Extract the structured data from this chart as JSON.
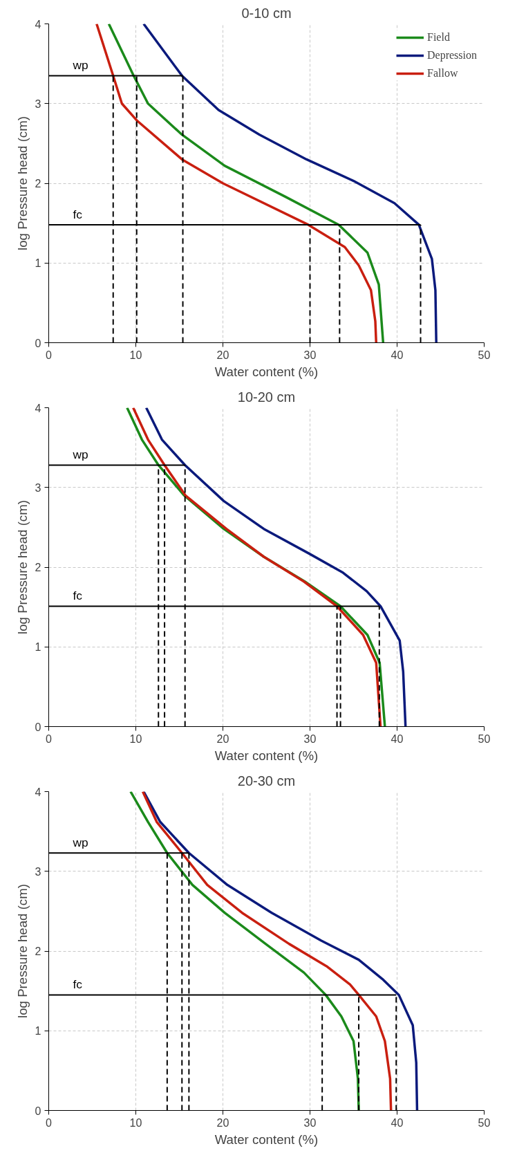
{
  "chart_data": [
    {
      "type": "line",
      "title": "0-10 cm",
      "xlabel": "Water content (%)",
      "ylabel": "log Pressure head (cm)",
      "xlim": [
        0,
        50
      ],
      "ylim": [
        0,
        4
      ],
      "xticks": [
        0,
        10,
        20,
        30,
        40,
        50
      ],
      "yticks": [
        0,
        1,
        2,
        3,
        4
      ],
      "grid": true,
      "legend": "top right",
      "annotations": [
        {
          "text": "wp",
          "y": 3.35
        },
        {
          "text": "fc",
          "y": 1.48
        }
      ],
      "series": [
        {
          "name": "Field",
          "color": "#1b8a1b",
          "x": [
            6.9,
            9.75,
            11.4,
            15.3,
            20.2,
            27.2,
            33.3,
            36.6,
            37.9,
            38.4
          ],
          "values": [
            4,
            3.35,
            3.0,
            2.61,
            2.22,
            1.83,
            1.48,
            1.13,
            0.73,
            0
          ]
        },
        {
          "name": "Depression",
          "color": "#0b1a7c",
          "x": [
            10.9,
            15.3,
            19.5,
            24.2,
            29.6,
            35.0,
            39.7,
            42.5,
            44.0,
            44.4,
            44.5
          ],
          "values": [
            4,
            3.35,
            2.92,
            2.61,
            2.3,
            2.03,
            1.75,
            1.48,
            1.05,
            0.66,
            0
          ]
        },
        {
          "name": "Fallow",
          "color": "#c91f10",
          "x": [
            5.5,
            7.4,
            8.4,
            10.1,
            15.3,
            20.0,
            29.8,
            34.0,
            35.6,
            37.0,
            37.5,
            37.6
          ],
          "values": [
            4,
            3.35,
            3.0,
            2.79,
            2.3,
            2.0,
            1.48,
            1.2,
            0.97,
            0.66,
            0.27,
            0
          ]
        },
        {
          "color": "#000000",
          "x": [
            0,
            15.4
          ],
          "values": [
            3.35,
            3.35
          ]
        },
        {
          "color": "#000000",
          "x": [
            0,
            42.7
          ],
          "values": [
            1.48,
            1.48
          ]
        },
        {
          "color": "#000000",
          "line_style": "dashed",
          "x": [
            7.4,
            7.4
          ],
          "values": [
            0,
            3.35
          ]
        },
        {
          "color": "#000000",
          "line_style": "dashed",
          "x": [
            10.1,
            10.1
          ],
          "values": [
            0,
            3.35
          ]
        },
        {
          "color": "#000000",
          "line_style": "dashed",
          "x": [
            15.4,
            15.4
          ],
          "values": [
            0,
            3.35
          ]
        },
        {
          "color": "#000000",
          "line_style": "dashed",
          "x": [
            30.0,
            30.0
          ],
          "values": [
            0,
            1.48
          ]
        },
        {
          "color": "#000000",
          "line_style": "dashed",
          "x": [
            33.4,
            33.4
          ],
          "values": [
            0,
            1.48
          ]
        },
        {
          "color": "#000000",
          "line_style": "dashed",
          "x": [
            42.7,
            42.7
          ],
          "values": [
            0,
            1.48
          ]
        }
      ]
    },
    {
      "type": "line",
      "title": "10-20 cm",
      "xlabel": "Water content (%)",
      "ylabel": "log Pressure head (cm)",
      "xlim": [
        0,
        50
      ],
      "ylim": [
        0,
        4
      ],
      "xticks": [
        0,
        10,
        20,
        30,
        40,
        50
      ],
      "yticks": [
        0,
        1,
        2,
        3,
        4
      ],
      "grid": true,
      "annotations": [
        {
          "text": "wp",
          "y": 3.28
        },
        {
          "text": "fc",
          "y": 1.51
        }
      ],
      "series": [
        {
          "color": "#1b8a1b",
          "x": [
            9.0,
            10.7,
            12.6,
            15.55,
            20.1,
            24.7,
            29.4,
            33.5,
            36.6,
            38.0,
            38.6
          ],
          "values": [
            4,
            3.6,
            3.28,
            2.9,
            2.48,
            2.13,
            1.82,
            1.51,
            1.15,
            0.8,
            0
          ]
        },
        {
          "color": "#0b1a7c",
          "x": [
            11.2,
            13.0,
            15.65,
            20.1,
            24.7,
            29.9,
            33.8,
            36.5,
            38.1,
            40.3,
            40.7,
            40.97
          ],
          "values": [
            4,
            3.6,
            3.28,
            2.83,
            2.48,
            2.17,
            1.93,
            1.7,
            1.51,
            1.08,
            0.69,
            0
          ]
        },
        {
          "color": "#c91f10",
          "x": [
            9.7,
            11.4,
            13.3,
            15.7,
            20.4,
            24.7,
            29.3,
            33.1,
            36.1,
            37.6,
            38.1
          ],
          "values": [
            4,
            3.6,
            3.28,
            2.9,
            2.48,
            2.13,
            1.82,
            1.51,
            1.15,
            0.8,
            0
          ]
        },
        {
          "color": "#000000",
          "x": [
            0,
            15.65
          ],
          "values": [
            3.28,
            3.28
          ]
        },
        {
          "color": "#000000",
          "x": [
            0,
            37.96
          ],
          "values": [
            1.51,
            1.51
          ]
        },
        {
          "color": "#000000",
          "line_style": "dashed",
          "x": [
            12.6,
            12.6
          ],
          "values": [
            0,
            3.28
          ]
        },
        {
          "color": "#000000",
          "line_style": "dashed",
          "x": [
            13.3,
            13.3
          ],
          "values": [
            0,
            3.28
          ]
        },
        {
          "color": "#000000",
          "line_style": "dashed",
          "x": [
            15.65,
            15.65
          ],
          "values": [
            0,
            3.28
          ]
        },
        {
          "color": "#000000",
          "line_style": "dashed",
          "x": [
            33.1,
            33.1
          ],
          "values": [
            0,
            1.51
          ]
        },
        {
          "color": "#000000",
          "line_style": "dashed",
          "x": [
            33.5,
            33.5
          ],
          "values": [
            0,
            1.51
          ]
        },
        {
          "color": "#000000",
          "line_style": "dashed",
          "x": [
            37.96,
            37.96
          ],
          "values": [
            0,
            1.51
          ]
        }
      ]
    },
    {
      "type": "line",
      "title": "20-30 cm",
      "xlabel": "Water content (%)",
      "ylabel": "log Pressure head (cm)",
      "xlim": [
        0,
        50
      ],
      "ylim": [
        0,
        4
      ],
      "xticks": [
        0,
        10,
        20,
        30,
        40,
        50
      ],
      "yticks": [
        0,
        1,
        2,
        3,
        4
      ],
      "grid": true,
      "annotations": [
        {
          "text": "wp",
          "y": 3.23
        },
        {
          "text": "fc",
          "y": 1.45
        }
      ],
      "series": [
        {
          "color": "#1b8a1b",
          "x": [
            9.4,
            11.4,
            13.6,
            16.5,
            20.2,
            24.9,
            29.3,
            31.8,
            33.6,
            35.0,
            35.5,
            35.6
          ],
          "values": [
            4,
            3.62,
            3.23,
            2.83,
            2.48,
            2.09,
            1.73,
            1.45,
            1.18,
            0.87,
            0.4,
            0
          ]
        },
        {
          "color": "#0b1a7c",
          "x": [
            10.9,
            12.8,
            16.1,
            20.5,
            25.6,
            31.3,
            35.6,
            38.3,
            40.2,
            41.8,
            42.2,
            42.3
          ],
          "values": [
            4,
            3.62,
            3.23,
            2.83,
            2.48,
            2.13,
            1.89,
            1.65,
            1.45,
            1.07,
            0.6,
            0
          ]
        },
        {
          "color": "#c91f10",
          "x": [
            10.8,
            12.4,
            15.3,
            18.2,
            22.2,
            27.6,
            31.9,
            34.6,
            35.6,
            37.6,
            38.6,
            39.2,
            39.3
          ],
          "values": [
            4,
            3.62,
            3.23,
            2.83,
            2.48,
            2.09,
            1.81,
            1.58,
            1.45,
            1.18,
            0.87,
            0.4,
            0
          ]
        },
        {
          "color": "#000000",
          "x": [
            0,
            16.1
          ],
          "values": [
            3.23,
            3.23
          ]
        },
        {
          "color": "#000000",
          "x": [
            0,
            39.9
          ],
          "values": [
            1.45,
            1.45
          ]
        },
        {
          "color": "#000000",
          "line_style": "dashed",
          "x": [
            13.6,
            13.6
          ],
          "values": [
            0,
            3.23
          ]
        },
        {
          "color": "#000000",
          "line_style": "dashed",
          "x": [
            15.3,
            15.3
          ],
          "values": [
            0,
            3.23
          ]
        },
        {
          "color": "#000000",
          "line_style": "dashed",
          "x": [
            16.1,
            16.1
          ],
          "values": [
            0,
            3.23
          ]
        },
        {
          "color": "#000000",
          "line_style": "dashed",
          "x": [
            31.4,
            31.4
          ],
          "values": [
            0,
            1.45
          ]
        },
        {
          "color": "#000000",
          "line_style": "dashed",
          "x": [
            35.6,
            35.6
          ],
          "values": [
            0,
            1.45
          ]
        },
        {
          "color": "#000000",
          "line_style": "dashed",
          "x": [
            39.9,
            39.9
          ],
          "values": [
            0,
            1.45
          ]
        }
      ]
    }
  ]
}
